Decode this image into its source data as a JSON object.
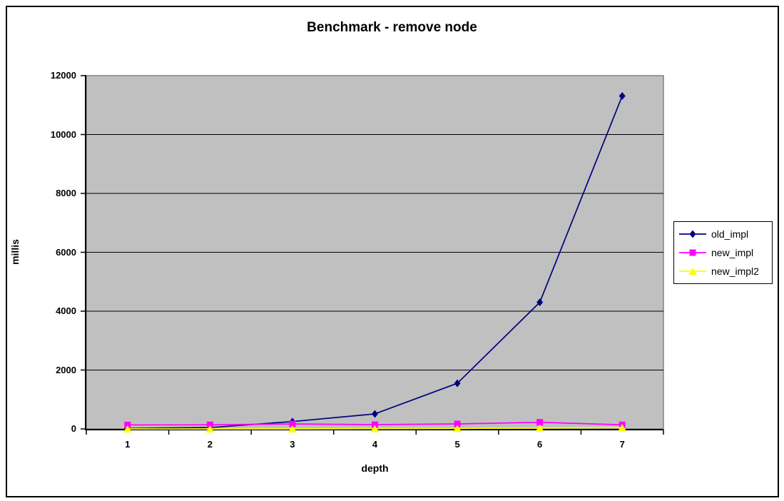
{
  "window": {
    "background": "#FFFFFF",
    "border_color": "#000000"
  },
  "chart_data": {
    "type": "line",
    "title": "Benchmark - remove node",
    "xlabel": "depth",
    "ylabel": "millis",
    "categories": [
      "1",
      "2",
      "3",
      "4",
      "5",
      "6",
      "7"
    ],
    "series": [
      {
        "name": "old_impl",
        "color": "#000080",
        "marker": "diamond",
        "values": [
          16,
          47,
          250,
          510,
          1550,
          4300,
          11310
        ]
      },
      {
        "name": "new_impl",
        "color": "#FF00FF",
        "marker": "square",
        "values": [
          135,
          140,
          170,
          145,
          170,
          225,
          140
        ]
      },
      {
        "name": "new_impl2",
        "color": "#FFFF00",
        "marker": "triangle",
        "values": [
          0,
          0,
          0,
          10,
          15,
          30,
          45
        ]
      }
    ],
    "ylim": [
      0,
      12000
    ],
    "yticks": [
      0,
      2000,
      4000,
      6000,
      8000,
      10000,
      12000
    ],
    "grid": true,
    "legend_position": "right",
    "plot_background": "#C0C0C0",
    "gridline_color": "#000000",
    "plot_border_color": "#808080",
    "axis_color": "#000000"
  }
}
